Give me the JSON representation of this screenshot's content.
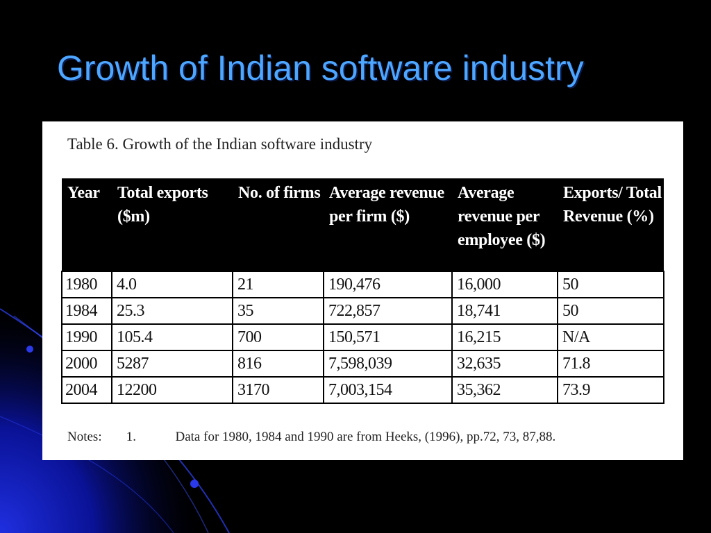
{
  "slide": {
    "title": "Growth of Indian software industry",
    "colors": {
      "background": "#000000",
      "title": "#4da6ff",
      "accent": "#1a2ecc"
    }
  },
  "table": {
    "caption": "Table 6. Growth of the Indian software industry",
    "headers": [
      "Year",
      "Total exports ($m)",
      "No. of firms",
      "Average revenue per firm ($)",
      "Average revenue per employee ($)",
      "Exports/ Total Revenue (%)"
    ],
    "rows": [
      [
        "1980",
        "4.0",
        "21",
        "190,476",
        "16,000",
        "50"
      ],
      [
        "1984",
        "25.3",
        "35",
        "722,857",
        "18,741",
        "50"
      ],
      [
        "1990",
        "105.4",
        "700",
        "150,571",
        "16,215",
        "N/A"
      ],
      [
        "2000",
        "5287",
        "816",
        "7,598,039",
        "32,635",
        "71.8"
      ],
      [
        "2004",
        "12200",
        "3170",
        "7,003,154",
        "35,362",
        "73.9"
      ]
    ],
    "notes": {
      "label": "Notes:",
      "number": "1.",
      "text": "Data for 1980, 1984 and 1990 are from Heeks, (1996), pp.72, 73, 87,88."
    }
  }
}
